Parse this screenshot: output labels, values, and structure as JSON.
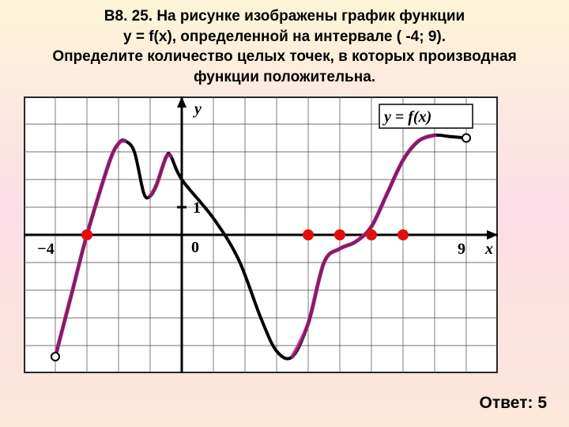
{
  "title_line1": "В8. 25. На рисунке изображены график функции",
  "title_line2": "у = f(x), определенной на интервале ( -4; 9).",
  "title_line3": "Определите количество целых точек, в которых производная",
  "title_line4": "функции положительна.",
  "answer_label": "Ответ: 5",
  "figure": {
    "type": "line",
    "x_domain": [
      -4,
      9
    ],
    "xlim": [
      -5,
      10
    ],
    "ylim": [
      -5,
      5
    ],
    "background_color": "#ffffff",
    "grid_color": "#444444",
    "axis_color": "#000000",
    "curve_color": "#000000",
    "highlight_color": "#e83ab3",
    "marker_color": "#e40d0d",
    "curve_stroke_width": 4,
    "highlight_stroke_width": 5,
    "marker_radius": 7,
    "open_marker_color": "#ffffff",
    "open_marker_stroke": "#000000",
    "label_fontsize": 20,
    "label_fontweight": "bold",
    "label_fontstyle": "italic",
    "axis_labels": {
      "x": "x",
      "y": "y",
      "origin": "0",
      "one": "1",
      "neg4": "−4",
      "nine": "9",
      "func": "y = f(x)"
    },
    "curve_points": [
      {
        "x": -4,
        "y": -4.4
      },
      {
        "x": -3.5,
        "y": -2.2
      },
      {
        "x": -3,
        "y": 0
      },
      {
        "x": -2.3,
        "y": 2.6
      },
      {
        "x": -2,
        "y": 3.3
      },
      {
        "x": -1.8,
        "y": 3.4
      },
      {
        "x": -1.5,
        "y": 3.0
      },
      {
        "x": -1.2,
        "y": 1.5
      },
      {
        "x": -1.0,
        "y": 1.4
      },
      {
        "x": -0.8,
        "y": 1.8
      },
      {
        "x": -0.5,
        "y": 2.8
      },
      {
        "x": -0.35,
        "y": 2.85
      },
      {
        "x": 0,
        "y": 2.0
      },
      {
        "x": 1,
        "y": 0.6
      },
      {
        "x": 1.8,
        "y": -0.9
      },
      {
        "x": 2.5,
        "y": -3.0
      },
      {
        "x": 3.0,
        "y": -4.2
      },
      {
        "x": 3.5,
        "y": -4.4
      },
      {
        "x": 4,
        "y": -3.2
      },
      {
        "x": 4.5,
        "y": -1.0
      },
      {
        "x": 5,
        "y": -0.5
      },
      {
        "x": 5.5,
        "y": -0.25
      },
      {
        "x": 6,
        "y": 0.3
      },
      {
        "x": 6.5,
        "y": 1.5
      },
      {
        "x": 7,
        "y": 2.7
      },
      {
        "x": 7.5,
        "y": 3.4
      },
      {
        "x": 8,
        "y": 3.6
      },
      {
        "x": 8.5,
        "y": 3.55
      },
      {
        "x": 9,
        "y": 3.5
      }
    ],
    "highlight_segments": [
      {
        "from_x": -4,
        "to_x": -1.8
      },
      {
        "from_x": -1.0,
        "to_x": -0.35
      },
      {
        "from_x": 3.5,
        "to_x": 8
      }
    ],
    "markers": [
      {
        "x": -3,
        "y": 0
      },
      {
        "x": 4,
        "y": 0
      },
      {
        "x": 5,
        "y": 0
      },
      {
        "x": 6,
        "y": 0
      },
      {
        "x": 7,
        "y": 0
      }
    ],
    "open_markers": [
      {
        "x": -4,
        "y": -4.4
      },
      {
        "x": 9,
        "y": 3.5
      }
    ]
  }
}
